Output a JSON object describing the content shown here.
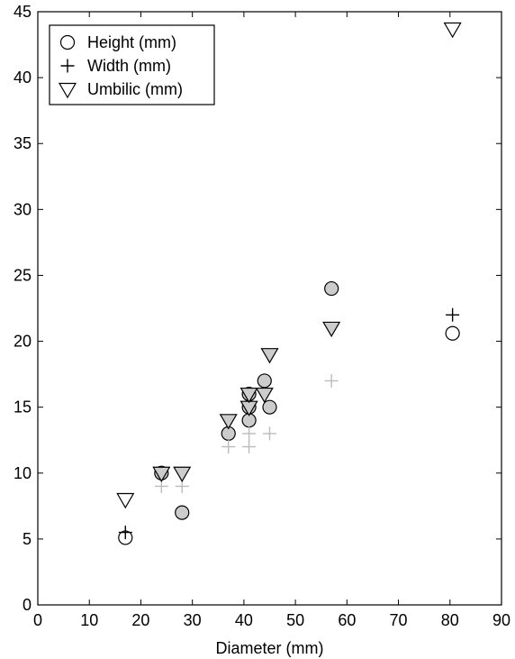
{
  "chart_data": {
    "type": "scatter",
    "xlabel": "Diameter (mm)",
    "ylabel": "",
    "xlim": [
      0,
      90
    ],
    "ylim": [
      0,
      45
    ],
    "xticks": [
      0,
      10,
      20,
      30,
      40,
      50,
      60,
      70,
      80,
      90
    ],
    "yticks": [
      0,
      5,
      10,
      15,
      20,
      25,
      30,
      35,
      40,
      45
    ],
    "grid": false,
    "legend_position": "top-left",
    "series": [
      {
        "name": "Height (mm)",
        "marker": "circle",
        "points": [
          {
            "x": 17,
            "y": 5.1,
            "style": "open"
          },
          {
            "x": 24,
            "y": 10,
            "style": "filled"
          },
          {
            "x": 28,
            "y": 7,
            "style": "filled"
          },
          {
            "x": 37,
            "y": 13,
            "style": "filled"
          },
          {
            "x": 41,
            "y": 14,
            "style": "filled"
          },
          {
            "x": 41,
            "y": 15,
            "style": "filled"
          },
          {
            "x": 41,
            "y": 16,
            "style": "filled"
          },
          {
            "x": 44,
            "y": 17,
            "style": "filled"
          },
          {
            "x": 45,
            "y": 15,
            "style": "filled"
          },
          {
            "x": 57,
            "y": 24,
            "style": "filled"
          },
          {
            "x": 80.5,
            "y": 20.6,
            "style": "open"
          }
        ]
      },
      {
        "name": "Width (mm)",
        "marker": "plus",
        "points": [
          {
            "x": 17,
            "y": 5.5,
            "style": "dark"
          },
          {
            "x": 24,
            "y": 9,
            "style": "light"
          },
          {
            "x": 28,
            "y": 9,
            "style": "light"
          },
          {
            "x": 37,
            "y": 12,
            "style": "light"
          },
          {
            "x": 41,
            "y": 12,
            "style": "light"
          },
          {
            "x": 41,
            "y": 13,
            "style": "light"
          },
          {
            "x": 45,
            "y": 13,
            "style": "light"
          },
          {
            "x": 57,
            "y": 17,
            "style": "light"
          },
          {
            "x": 80.5,
            "y": 22,
            "style": "dark"
          }
        ]
      },
      {
        "name": "Umbilic (mm)",
        "marker": "triangle-down",
        "points": [
          {
            "x": 17,
            "y": 8,
            "style": "open"
          },
          {
            "x": 24,
            "y": 10,
            "style": "filled"
          },
          {
            "x": 28,
            "y": 10,
            "style": "filled"
          },
          {
            "x": 37,
            "y": 14,
            "style": "filled"
          },
          {
            "x": 41,
            "y": 15,
            "style": "filled"
          },
          {
            "x": 41,
            "y": 16,
            "style": "filled"
          },
          {
            "x": 44,
            "y": 16,
            "style": "filled"
          },
          {
            "x": 45,
            "y": 19,
            "style": "filled"
          },
          {
            "x": 57,
            "y": 21,
            "style": "filled"
          },
          {
            "x": 80.5,
            "y": 43.7,
            "style": "open"
          }
        ]
      }
    ],
    "colors": {
      "marker_fill": "#cccccc",
      "marker_stroke": "#000000",
      "light_plus": "#bbbbbb",
      "axis": "#000000",
      "background": "#ffffff"
    }
  }
}
